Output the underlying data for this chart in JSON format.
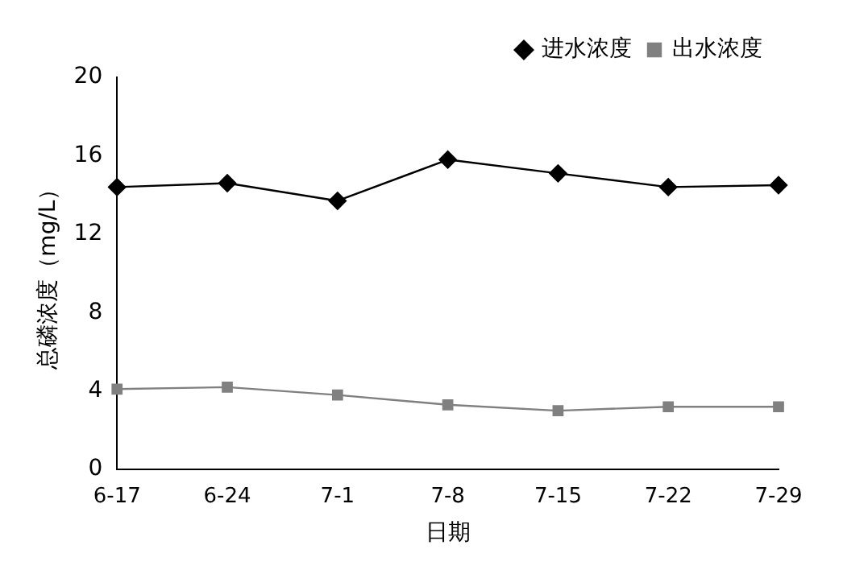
{
  "chart_data": {
    "type": "line",
    "xlabel": "日期",
    "ylabel": "总磷浓度（mg/L）",
    "categories": [
      "6-17",
      "6-24",
      "7-1",
      "7-8",
      "7-15",
      "7-22",
      "7-29"
    ],
    "series": [
      {
        "name": "进水浓度",
        "color": "#000000",
        "marker": "diamond",
        "values": [
          14.4,
          14.6,
          13.7,
          15.8,
          15.1,
          14.4,
          14.5
        ]
      },
      {
        "name": "出水浓度",
        "color": "#808080",
        "marker": "square",
        "values": [
          4.1,
          4.2,
          3.8,
          3.3,
          3.0,
          3.2,
          3.2
        ]
      }
    ],
    "ylim": [
      0,
      20
    ],
    "yticks": [
      0,
      4,
      8,
      12,
      16,
      20
    ],
    "grid": false,
    "legend": "top right",
    "line_style": "solid"
  }
}
